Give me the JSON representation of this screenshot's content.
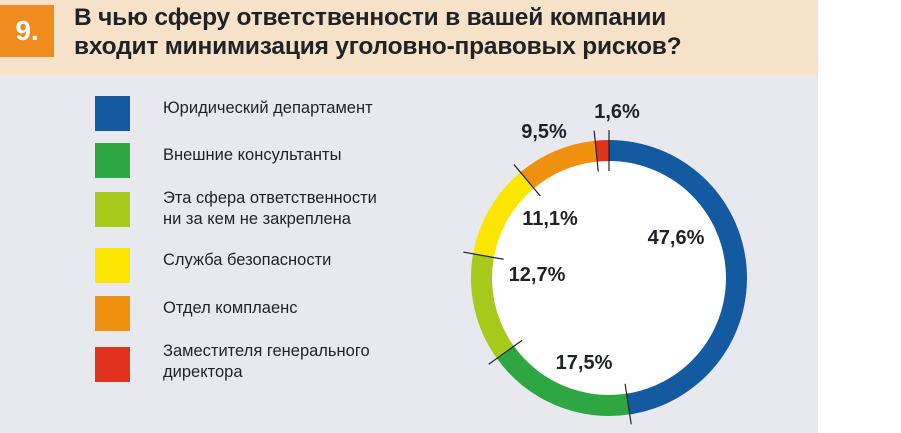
{
  "question": {
    "number": "9.",
    "title_line1": "В чью сферу ответственности в вашей компании",
    "title_line2": "входит минимизация уголовно-правовых рисков?"
  },
  "colors": {
    "header_bg": "#f5e2c8",
    "badge": "#f08c1e",
    "card_bg": "#e7e9ee"
  },
  "chart_data": {
    "type": "pie",
    "variant": "donut",
    "title": "В чью сферу ответственности в вашей компании входит минимизация уголовно-правовых рисков?",
    "categories": [
      "Юридический департамент",
      "Внешние консультанты",
      "Эта сфера ответственности\nни за кем не закреплена",
      "Служба безопасности",
      "Отдел комплаенс",
      "Заместителя генерального\nдиректора"
    ],
    "values": [
      47.6,
      17.5,
      12.7,
      11.1,
      9.5,
      1.6
    ],
    "labels": [
      "47,6%",
      "17,5%",
      "12,7%",
      "11,1%",
      "9,5%",
      "1,6%"
    ],
    "colors": [
      "#135aa0",
      "#2ea743",
      "#a7c91a",
      "#fce600",
      "#f0900f",
      "#e0321c"
    ],
    "legend_position": "left"
  }
}
